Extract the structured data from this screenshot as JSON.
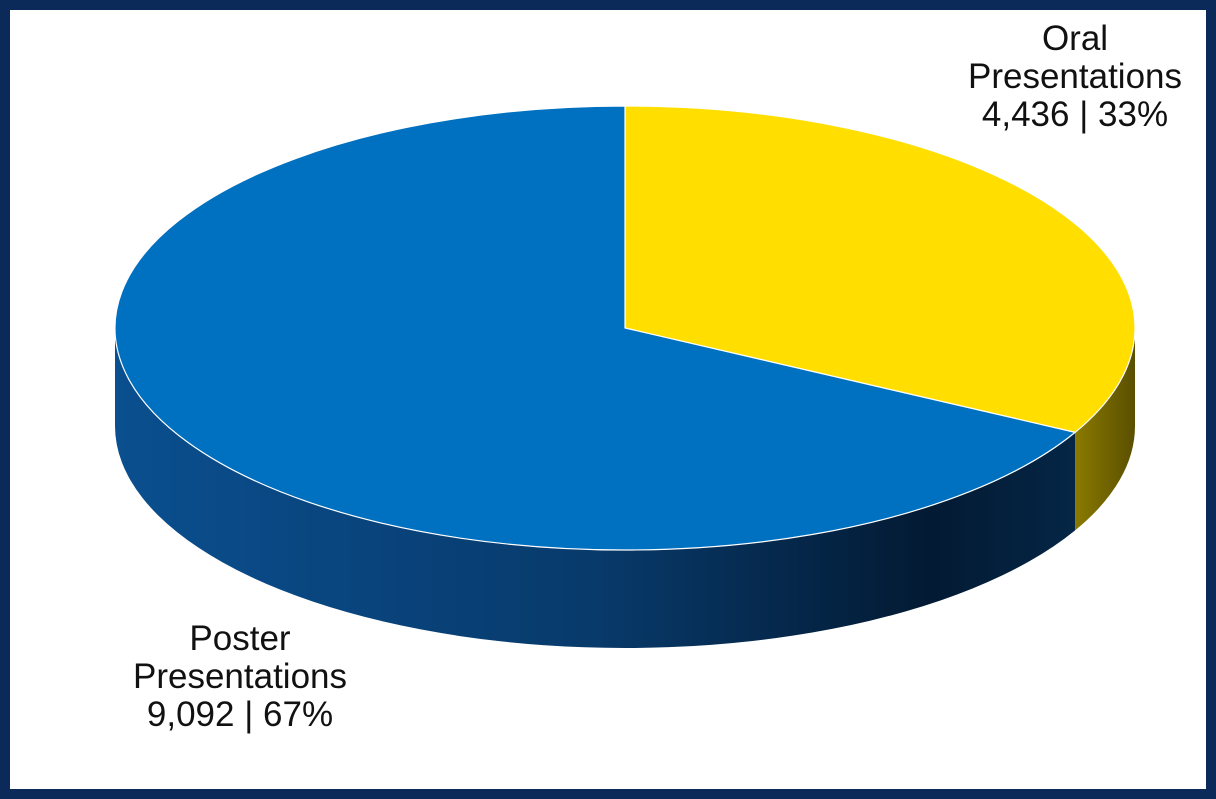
{
  "chart_data": {
    "type": "pie",
    "style": "3d",
    "start_angle_deg": 0,
    "direction": "clockwise",
    "slices": [
      {
        "name": "Oral Presentations",
        "name_lines": [
          "Oral",
          "Presentations"
        ],
        "value": 4436,
        "value_text": "4,436 | 33%",
        "percent": 33,
        "color": "#FFDE00",
        "side_color": "#8a7a00"
      },
      {
        "name": "Poster Presentations",
        "name_lines": [
          "Poster",
          "Presentations"
        ],
        "value": 9092,
        "value_text": "9,092 | 67%",
        "percent": 67,
        "color": "#0070C0",
        "side_color": "#0a3f73"
      }
    ]
  },
  "colors": {
    "frame": "#0b2a5a",
    "background": "#ffffff"
  }
}
